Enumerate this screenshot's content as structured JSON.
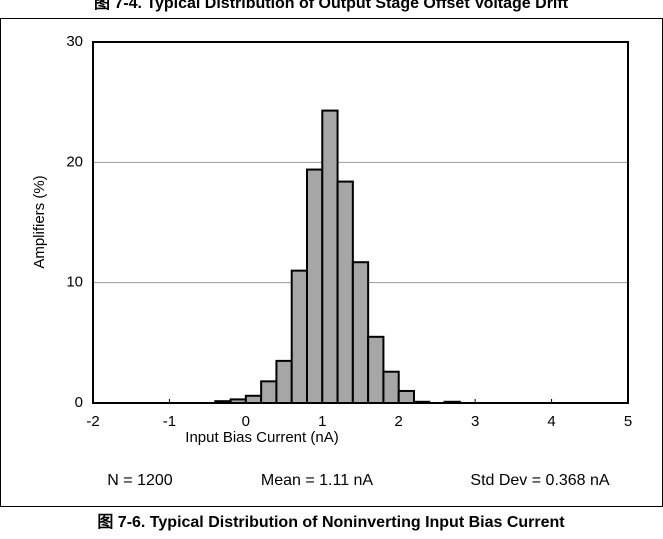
{
  "caption_above": "图 7-4. Typical Distribution of Output Stage Offset Voltage Drift",
  "caption": "图 7-6. Typical Distribution of Noninverting Input Bias Current",
  "chart_data": {
    "type": "histogram",
    "x_label": "Input Bias Current (nA)",
    "y_label": "Amplifiers (%)",
    "bins": [
      -0.4,
      -0.2,
      0,
      0.2,
      0.4,
      0.6,
      0.8,
      1.0,
      1.2,
      1.4,
      1.6,
      1.8,
      2.0,
      2.2,
      2.4,
      2.6,
      2.8
    ],
    "values": [
      0.15,
      0.3,
      0.6,
      1.8,
      3.5,
      11.0,
      19.4,
      24.3,
      18.4,
      11.7,
      5.5,
      2.6,
      1.0,
      0.1,
      0,
      0.1
    ],
    "color": "#a6a6a6",
    "xlim": [
      -2,
      5
    ],
    "xticks": [
      -2,
      -1,
      0,
      1,
      2,
      3,
      4,
      5
    ],
    "ylim": [
      0,
      30
    ],
    "yticks": [
      0,
      10,
      20,
      30
    ],
    "grid": true,
    "annotations": [
      "N = 1200",
      "Mean = 1.11 nA",
      "Std Dev = 0.368 nA"
    ]
  }
}
